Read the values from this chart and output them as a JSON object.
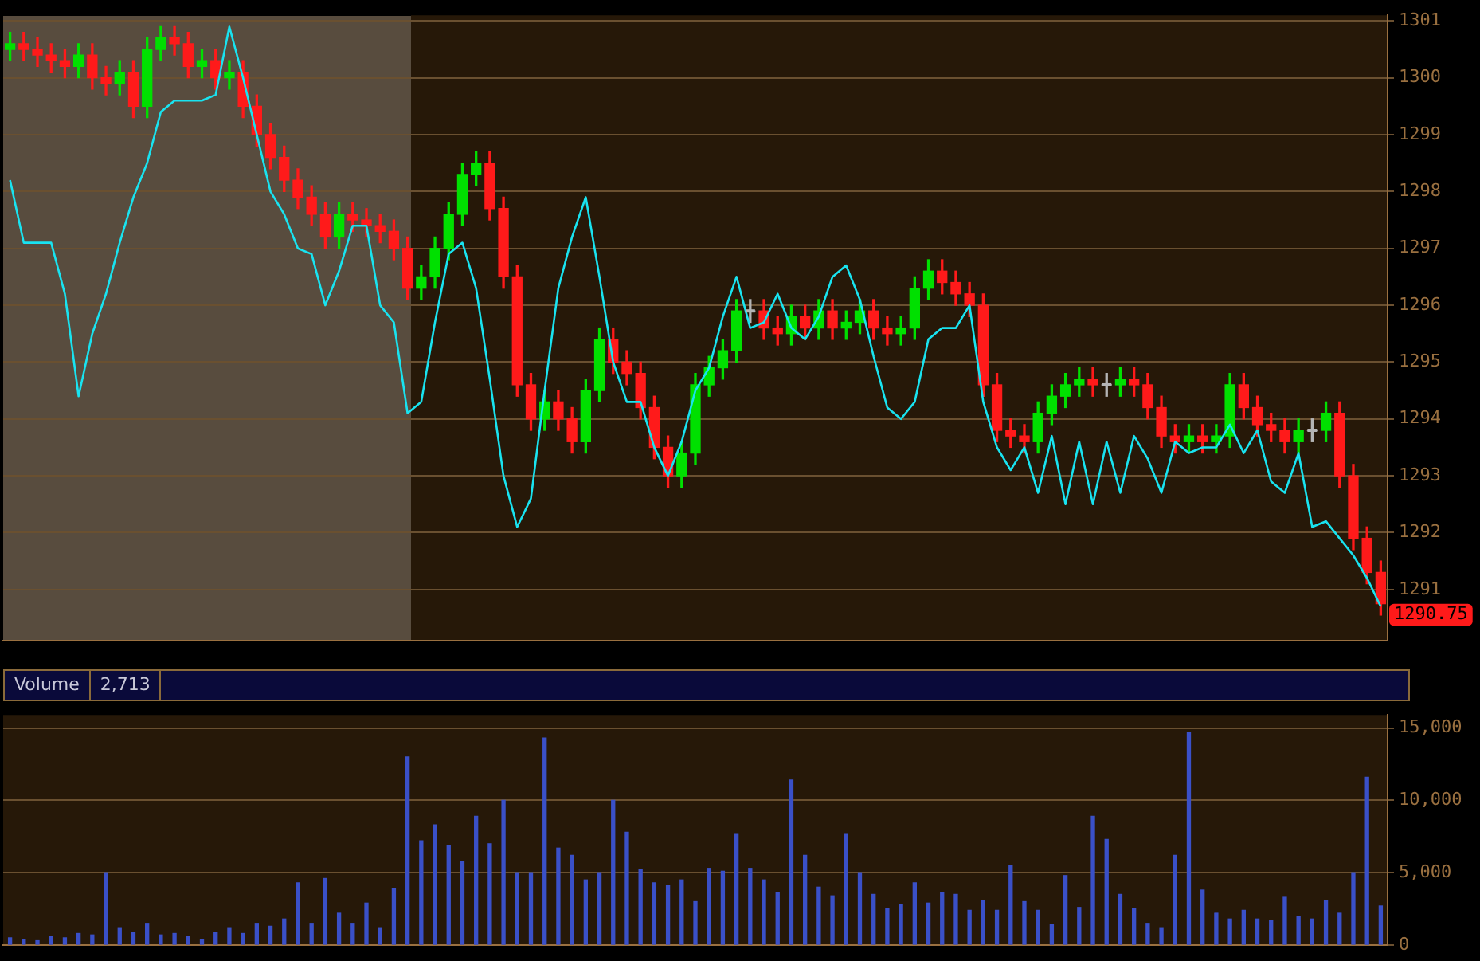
{
  "chart_data": [
    {
      "type": "candlestick",
      "categories": [
        null,
        null,
        null,
        null,
        null,
        null,
        null,
        null,
        null,
        null,
        null,
        null,
        null,
        null,
        null,
        null,
        null,
        null,
        null,
        null,
        null,
        null,
        null,
        null,
        null,
        null,
        null,
        null,
        null,
        null,
        null,
        null,
        null,
        null,
        null,
        null,
        null,
        null,
        null,
        null,
        null,
        null,
        null,
        null,
        null,
        null,
        null,
        null,
        null,
        null,
        null,
        null,
        null,
        null,
        null,
        null,
        null,
        null,
        null,
        null,
        null,
        null,
        null,
        null,
        null,
        null,
        null,
        null,
        null,
        null,
        null,
        null,
        null,
        null,
        null,
        null,
        null,
        null,
        null,
        null,
        null,
        null,
        null,
        null,
        null,
        null,
        null,
        null,
        null,
        null,
        null,
        null,
        null,
        null,
        null,
        null,
        null,
        null,
        null,
        null,
        null
      ],
      "ohlc": [
        [
          1300.5,
          1300.8,
          1300.3,
          1300.6
        ],
        [
          1300.6,
          1300.8,
          1300.3,
          1300.5
        ],
        [
          1300.5,
          1300.7,
          1300.2,
          1300.4
        ],
        [
          1300.4,
          1300.6,
          1300.1,
          1300.3
        ],
        [
          1300.3,
          1300.5,
          1300.0,
          1300.2
        ],
        [
          1300.2,
          1300.6,
          1300.0,
          1300.4
        ],
        [
          1300.4,
          1300.6,
          1299.8,
          1300.0
        ],
        [
          1300.0,
          1300.2,
          1299.7,
          1299.9
        ],
        [
          1299.9,
          1300.3,
          1299.7,
          1300.1
        ],
        [
          1300.1,
          1300.3,
          1299.3,
          1299.5
        ],
        [
          1299.5,
          1300.7,
          1299.3,
          1300.5
        ],
        [
          1300.5,
          1300.9,
          1300.3,
          1300.7
        ],
        [
          1300.7,
          1300.9,
          1300.4,
          1300.6
        ],
        [
          1300.6,
          1300.8,
          1300.0,
          1300.2
        ],
        [
          1300.2,
          1300.5,
          1300.0,
          1300.3
        ],
        [
          1300.3,
          1300.5,
          1299.8,
          1300.0
        ],
        [
          1300.0,
          1300.3,
          1299.8,
          1300.1
        ],
        [
          1300.1,
          1300.3,
          1299.3,
          1299.5
        ],
        [
          1299.5,
          1299.7,
          1298.8,
          1299.0
        ],
        [
          1299.0,
          1299.2,
          1298.4,
          1298.6
        ],
        [
          1298.6,
          1298.8,
          1298.0,
          1298.2
        ],
        [
          1298.2,
          1298.4,
          1297.7,
          1297.9
        ],
        [
          1297.9,
          1298.1,
          1297.4,
          1297.6
        ],
        [
          1297.6,
          1297.8,
          1297.0,
          1297.2
        ],
        [
          1297.2,
          1297.8,
          1297.0,
          1297.6
        ],
        [
          1297.6,
          1297.8,
          1297.3,
          1297.5
        ],
        [
          1297.5,
          1297.7,
          1297.2,
          1297.4
        ],
        [
          1297.4,
          1297.6,
          1297.1,
          1297.3
        ],
        [
          1297.3,
          1297.5,
          1296.8,
          1297.0
        ],
        [
          1297.0,
          1297.2,
          1296.1,
          1296.3
        ],
        [
          1296.3,
          1296.7,
          1296.1,
          1296.5
        ],
        [
          1296.5,
          1297.2,
          1296.3,
          1297.0
        ],
        [
          1297.0,
          1297.8,
          1296.8,
          1297.6
        ],
        [
          1297.6,
          1298.5,
          1297.4,
          1298.3
        ],
        [
          1298.3,
          1298.7,
          1298.1,
          1298.5
        ],
        [
          1298.5,
          1298.7,
          1297.5,
          1297.7
        ],
        [
          1297.7,
          1297.9,
          1296.3,
          1296.5
        ],
        [
          1296.5,
          1296.7,
          1294.4,
          1294.6
        ],
        [
          1294.6,
          1294.8,
          1293.8,
          1294.0
        ],
        [
          1294.0,
          1294.5,
          1293.8,
          1294.3
        ],
        [
          1294.3,
          1294.5,
          1293.8,
          1294.0
        ],
        [
          1294.0,
          1294.2,
          1293.4,
          1293.6
        ],
        [
          1293.6,
          1294.7,
          1293.4,
          1294.5
        ],
        [
          1294.5,
          1295.6,
          1294.3,
          1295.4
        ],
        [
          1295.4,
          1295.6,
          1294.8,
          1295.0
        ],
        [
          1295.0,
          1295.2,
          1294.6,
          1294.8
        ],
        [
          1294.8,
          1295.0,
          1294.0,
          1294.2
        ],
        [
          1294.2,
          1294.4,
          1293.3,
          1293.5
        ],
        [
          1293.5,
          1293.7,
          1292.8,
          1293.0
        ],
        [
          1293.0,
          1293.6,
          1292.8,
          1293.4
        ],
        [
          1293.4,
          1294.8,
          1293.2,
          1294.6
        ],
        [
          1294.6,
          1295.1,
          1294.4,
          1294.9
        ],
        [
          1294.9,
          1295.4,
          1294.7,
          1295.2
        ],
        [
          1295.2,
          1296.1,
          1295.0,
          1295.9
        ],
        [
          1295.9,
          1296.1,
          1295.7,
          1295.9
        ],
        [
          1295.9,
          1296.1,
          1295.4,
          1295.6
        ],
        [
          1295.6,
          1295.8,
          1295.3,
          1295.5
        ],
        [
          1295.5,
          1296.0,
          1295.3,
          1295.8
        ],
        [
          1295.8,
          1296.0,
          1295.4,
          1295.6
        ],
        [
          1295.6,
          1296.1,
          1295.4,
          1295.9
        ],
        [
          1295.9,
          1296.1,
          1295.4,
          1295.6
        ],
        [
          1295.6,
          1295.9,
          1295.4,
          1295.7
        ],
        [
          1295.7,
          1296.1,
          1295.5,
          1295.9
        ],
        [
          1295.9,
          1296.1,
          1295.4,
          1295.6
        ],
        [
          1295.6,
          1295.8,
          1295.3,
          1295.5
        ],
        [
          1295.5,
          1295.8,
          1295.3,
          1295.6
        ],
        [
          1295.6,
          1296.5,
          1295.4,
          1296.3
        ],
        [
          1296.3,
          1296.8,
          1296.1,
          1296.6
        ],
        [
          1296.6,
          1296.8,
          1296.2,
          1296.4
        ],
        [
          1296.4,
          1296.6,
          1296.0,
          1296.2
        ],
        [
          1296.2,
          1296.4,
          1295.8,
          1296.0
        ],
        [
          1296.0,
          1296.2,
          1294.4,
          1294.6
        ],
        [
          1294.6,
          1294.8,
          1293.6,
          1293.8
        ],
        [
          1293.8,
          1294.0,
          1293.5,
          1293.7
        ],
        [
          1293.7,
          1293.9,
          1293.4,
          1293.6
        ],
        [
          1293.6,
          1294.3,
          1293.4,
          1294.1
        ],
        [
          1294.1,
          1294.6,
          1293.9,
          1294.4
        ],
        [
          1294.4,
          1294.8,
          1294.2,
          1294.6
        ],
        [
          1294.6,
          1294.9,
          1294.4,
          1294.7
        ],
        [
          1294.7,
          1294.9,
          1294.4,
          1294.6
        ],
        [
          1294.6,
          1294.8,
          1294.4,
          1294.6
        ],
        [
          1294.6,
          1294.9,
          1294.4,
          1294.7
        ],
        [
          1294.7,
          1294.9,
          1294.4,
          1294.6
        ],
        [
          1294.6,
          1294.8,
          1294.0,
          1294.2
        ],
        [
          1294.2,
          1294.4,
          1293.5,
          1293.7
        ],
        [
          1293.7,
          1293.9,
          1293.4,
          1293.6
        ],
        [
          1293.6,
          1293.9,
          1293.4,
          1293.7
        ],
        [
          1293.7,
          1293.9,
          1293.4,
          1293.6
        ],
        [
          1293.6,
          1293.9,
          1293.4,
          1293.7
        ],
        [
          1293.7,
          1294.8,
          1293.5,
          1294.6
        ],
        [
          1294.6,
          1294.8,
          1294.0,
          1294.2
        ],
        [
          1294.2,
          1294.4,
          1293.7,
          1293.9
        ],
        [
          1293.9,
          1294.1,
          1293.6,
          1293.8
        ],
        [
          1293.8,
          1294.0,
          1293.4,
          1293.6
        ],
        [
          1293.6,
          1294.0,
          1293.4,
          1293.8
        ],
        [
          1293.8,
          1294.0,
          1293.6,
          1293.8
        ],
        [
          1293.8,
          1294.3,
          1293.6,
          1294.1
        ],
        [
          1294.1,
          1294.3,
          1292.8,
          1293.0
        ],
        [
          1293.0,
          1293.2,
          1291.7,
          1291.9
        ],
        [
          1291.9,
          1292.1,
          1291.1,
          1291.3
        ],
        [
          1291.3,
          1291.5,
          1290.55,
          1290.75
        ]
      ],
      "colors": [
        "#00e000",
        "#ff1a1a",
        "#ff1a1a",
        "#ff1a1a",
        "#ff1a1a",
        "#00e000",
        "#ff1a1a",
        "#ff1a1a",
        "#00e000",
        "#ff1a1a",
        "#00e000",
        "#00e000",
        "#ff1a1a",
        "#ff1a1a",
        "#00e000",
        "#ff1a1a",
        "#00e000",
        "#ff1a1a",
        "#ff1a1a",
        "#ff1a1a",
        "#ff1a1a",
        "#ff1a1a",
        "#ff1a1a",
        "#ff1a1a",
        "#00e000",
        "#ff1a1a",
        "#ff1a1a",
        "#ff1a1a",
        "#ff1a1a",
        "#ff1a1a",
        "#00e000",
        "#00e000",
        "#00e000",
        "#00e000",
        "#00e000",
        "#ff1a1a",
        "#ff1a1a",
        "#ff1a1a",
        "#ff1a1a",
        "#00e000",
        "#ff1a1a",
        "#ff1a1a",
        "#00e000",
        "#00e000",
        "#ff1a1a",
        "#ff1a1a",
        "#ff1a1a",
        "#ff1a1a",
        "#ff1a1a",
        "#00e000",
        "#00e000",
        "#00e000",
        "#00e000",
        "#00e000",
        "#b4b4b4",
        "#ff1a1a",
        "#ff1a1a",
        "#00e000",
        "#ff1a1a",
        "#00e000",
        "#ff1a1a",
        "#00e000",
        "#00e000",
        "#ff1a1a",
        "#ff1a1a",
        "#00e000",
        "#00e000",
        "#00e000",
        "#ff1a1a",
        "#ff1a1a",
        "#ff1a1a",
        "#ff1a1a",
        "#ff1a1a",
        "#ff1a1a",
        "#ff1a1a",
        "#00e000",
        "#00e000",
        "#00e000",
        "#00e000",
        "#ff1a1a",
        "#b4b4b4",
        "#00e000",
        "#ff1a1a",
        "#ff1a1a",
        "#ff1a1a",
        "#ff1a1a",
        "#00e000",
        "#ff1a1a",
        "#00e000",
        "#00e000",
        "#ff1a1a",
        "#ff1a1a",
        "#ff1a1a",
        "#ff1a1a",
        "#00e000",
        "#b4b4b4",
        "#00e000",
        "#ff1a1a",
        "#ff1a1a",
        "#ff1a1a",
        "#ff1a1a"
      ],
      "series": [
        {
          "type": "line",
          "color": "#19e3f0",
          "values": [
            1298.2,
            1297.1,
            1297.1,
            1297.1,
            1296.2,
            1294.4,
            1295.5,
            1296.2,
            1297.1,
            1297.9,
            1298.5,
            1299.4,
            1299.6,
            1299.6,
            1299.6,
            1299.7,
            1300.9,
            1300.0,
            1299.0,
            1298.0,
            1297.6,
            1297.0,
            1296.9,
            1296.0,
            1296.6,
            1297.4,
            1297.4,
            1296.0,
            1295.7,
            1294.1,
            1294.3,
            1295.7,
            1296.9,
            1297.1,
            1296.3,
            1294.7,
            1293.0,
            1292.1,
            1292.6,
            1294.5,
            1296.3,
            1297.2,
            1297.9,
            1296.5,
            1295.0,
            1294.3,
            1294.3,
            1293.5,
            1293.0,
            1293.6,
            1294.5,
            1294.9,
            1295.8,
            1296.5,
            1295.6,
            1295.7,
            1296.2,
            1295.6,
            1295.4,
            1295.8,
            1296.5,
            1296.7,
            1296.1,
            1295.1,
            1294.2,
            1294.0,
            1294.3,
            1295.4,
            1295.6,
            1295.6,
            1296.0,
            1294.3,
            1293.5,
            1293.1,
            1293.5,
            1292.7,
            1293.7,
            1292.5,
            1293.6,
            1292.5,
            1293.6,
            1292.7,
            1293.7,
            1293.3,
            1292.7,
            1293.6,
            1293.4,
            1293.5,
            1293.5,
            1293.9,
            1293.4,
            1293.8,
            1292.9,
            1292.7,
            1293.4,
            1292.1,
            1292.2,
            1291.9,
            1291.6,
            1291.2,
            1290.7
          ]
        }
      ],
      "ylim": [
        1290.1,
        1301.1
      ],
      "yticks": [
        1291,
        1292,
        1293,
        1294,
        1295,
        1296,
        1297,
        1298,
        1299,
        1300,
        1301
      ],
      "grid": "y",
      "tick_labels": "y",
      "legend": false,
      "annotations": [
        "1290.75"
      ]
    },
    {
      "type": "bar",
      "title": "Volume",
      "annotations": [
        "2,713"
      ],
      "categories": [
        null,
        null,
        null,
        null,
        null,
        null,
        null,
        null,
        null,
        null,
        null,
        null,
        null,
        null,
        null,
        null,
        null,
        null,
        null,
        null,
        null,
        null,
        null,
        null,
        null,
        null,
        null,
        null,
        null,
        null,
        null,
        null,
        null,
        null,
        null,
        null,
        null,
        null,
        null,
        null,
        null,
        null,
        null,
        null,
        null,
        null,
        null,
        null,
        null,
        null,
        null,
        null,
        null,
        null,
        null,
        null,
        null,
        null,
        null,
        null,
        null,
        null,
        null,
        null,
        null,
        null,
        null,
        null,
        null,
        null,
        null,
        null,
        null,
        null,
        null,
        null,
        null,
        null,
        null,
        null,
        null,
        null,
        null,
        null,
        null,
        null,
        null,
        null,
        null,
        null,
        null,
        null,
        null,
        null,
        null,
        null,
        null,
        null,
        null,
        null,
        null
      ],
      "values": [
        500,
        400,
        300,
        600,
        500,
        800,
        700,
        5000,
        1200,
        900,
        1500,
        700,
        800,
        600,
        400,
        900,
        1200,
        800,
        1500,
        1300,
        1800,
        4300,
        1500,
        4600,
        2200,
        1500,
        2900,
        1200,
        3900,
        13000,
        7200,
        8300,
        6900,
        5800,
        8900,
        7000,
        10000,
        5000,
        5000,
        14300,
        6700,
        6200,
        4500,
        5000,
        10000,
        7800,
        5200,
        4300,
        4100,
        4500,
        3000,
        5300,
        5100,
        7700,
        5300,
        4500,
        3600,
        11400,
        6200,
        4000,
        3400,
        7700,
        5000,
        3500,
        2500,
        2800,
        4300,
        2900,
        3600,
        3500,
        2400,
        3100,
        2400,
        5500,
        3000,
        2400,
        1400,
        4800,
        2600,
        8900,
        7300,
        3500,
        2500,
        1500,
        1200,
        6200,
        14700,
        3800,
        2200,
        1800,
        2400,
        1800,
        1700,
        3300,
        2000,
        1800,
        3100,
        2200,
        5000,
        11600,
        2700
      ],
      "color": "#3a50c8",
      "ylim": [
        0,
        15900
      ],
      "yticks": [
        0,
        {
          "value": 5000,
          "label": "5,000"
        },
        {
          "value": 10000,
          "label": "10,000"
        },
        {
          "value": 15000,
          "label": "15,000"
        }
      ],
      "grid": "y",
      "tick_labels": "y",
      "legend": false
    }
  ]
}
